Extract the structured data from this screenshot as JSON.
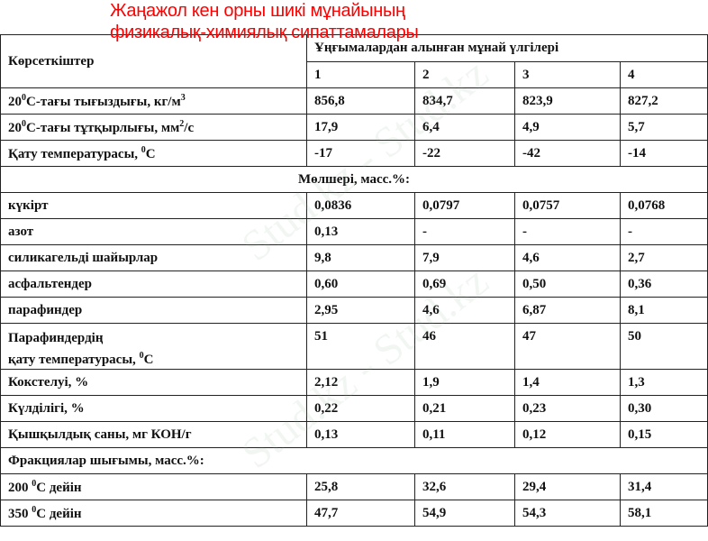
{
  "title": {
    "line1": "Жаңажол кен орны шикі мұнайының",
    "line2": "физикалық-химиялық сипаттамалары"
  },
  "header": {
    "indicators": "Көрсеткіштер",
    "samples": "Ұңғымалардан алынған мұнай үлгілері",
    "columns": [
      "1",
      "2",
      "3",
      "4"
    ]
  },
  "rows": [
    {
      "pre": "20",
      "sup": "0",
      "label": "С-тағы тығыздығы, кг/м",
      "sup2": "3",
      "values": [
        "856,8",
        "834,7",
        "823,9",
        "827,2"
      ]
    },
    {
      "pre": "20",
      "sup": "0",
      "label": "С-тағы тұтқырлығы, мм",
      "sup2": "2",
      "post": "/с",
      "values": [
        "17,9",
        "6,4",
        "4,9",
        "5,7"
      ]
    },
    {
      "label": "Қату температурасы, ",
      "sup2": "0",
      "post": "С",
      "values": [
        "-17",
        "-22",
        "-42",
        "-14"
      ]
    }
  ],
  "section1": "Мөлшері, масс.%:",
  "rows2": [
    {
      "label": "күкірт",
      "values": [
        "0,0836",
        "0,0797",
        "0,0757",
        "0,0768"
      ]
    },
    {
      "label": "азот",
      "values": [
        "0,13",
        "-",
        "-",
        "-"
      ]
    },
    {
      "label": "силикагельді шайырлар",
      "values": [
        "9,8",
        "7,9",
        "4,6",
        "2,7"
      ]
    },
    {
      "label": "асфальтендер",
      "values": [
        "0,60",
        "0,69",
        "0,50",
        "0,36"
      ]
    },
    {
      "label": "парафиндер",
      "values": [
        "2,95",
        "4,6",
        "6,87",
        "8,1"
      ]
    }
  ],
  "paraffin_freeze": {
    "line1": "Парафиндердің",
    "line2": "қату температурасы, ",
    "sup": "0",
    "post": "С",
    "values": [
      "51",
      "46",
      "47",
      "50"
    ]
  },
  "rows3": [
    {
      "label": "Кокстелуі, %",
      "values": [
        "2,12",
        "1,9",
        "1,4",
        "1,3"
      ]
    },
    {
      "label": "Күлділігі,  %",
      "values": [
        "0,22",
        "0,21",
        "0,23",
        "0,30"
      ]
    },
    {
      "label": "Қышқылдық саны, мг КОН/г",
      "values": [
        "0,13",
        "0,11",
        "0,12",
        "0,15"
      ]
    }
  ],
  "section2": "Фракциялар шығымы, масс.%:",
  "rows4": [
    {
      "pre": "200 ",
      "sup": "0",
      "label": "С дейін",
      "values": [
        "25,8",
        "32,6",
        "29,4",
        "31,4"
      ]
    },
    {
      "pre": "350 ",
      "sup": "0",
      "label": "С дейін",
      "values": [
        "47,7",
        "54,9",
        "54,3",
        "58,1"
      ]
    }
  ],
  "watermark": "Stud.kz - Stud.kz"
}
